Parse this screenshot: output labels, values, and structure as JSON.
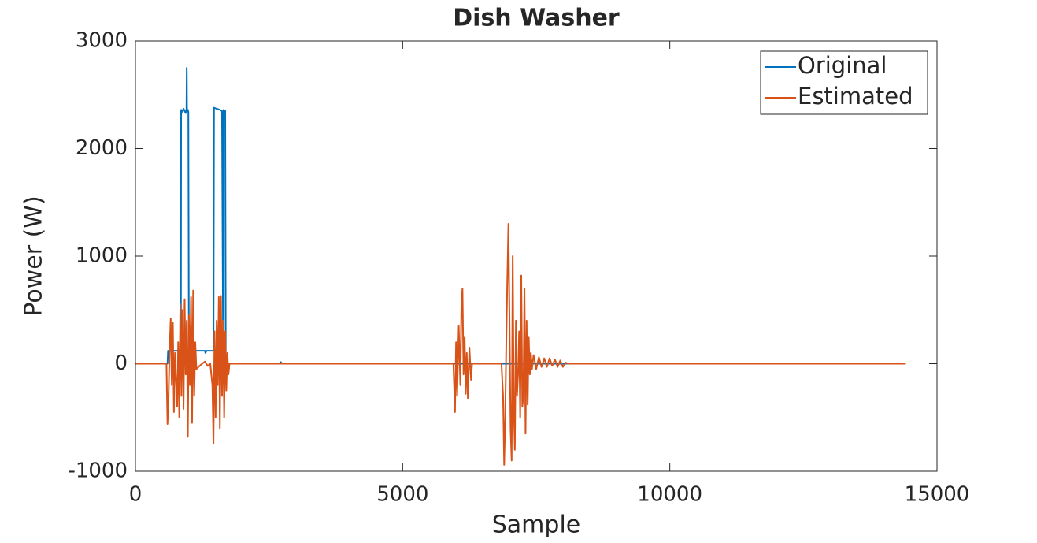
{
  "chart_data": {
    "type": "line",
    "title": "Dish Washer",
    "x_label": "Sample",
    "y_label": "Power (W)",
    "xlim": [
      0,
      15000
    ],
    "xticks": [
      0,
      5000,
      10000,
      15000
    ],
    "ylim": [
      -1000,
      3000
    ],
    "yticks": [
      -1000,
      0,
      1000,
      2000,
      3000
    ],
    "legend": "top-right",
    "series": [
      {
        "name": "Original",
        "color": "#0072BD",
        "x": [
          0,
          600,
          610,
          850,
          855,
          870,
          900,
          940,
          955,
          960,
          965,
          980,
          990,
          1000,
          1300,
          1310,
          1330,
          1340,
          1460,
          1470,
          1520,
          1580,
          1620,
          1640,
          1650,
          1660,
          1680,
          1690,
          1700,
          2700,
          2720,
          2740,
          2760,
          14400
        ],
        "values": [
          0,
          0,
          120,
          120,
          2360,
          2340,
          2370,
          2330,
          2360,
          2750,
          2350,
          2360,
          2340,
          120,
          120,
          100,
          120,
          120,
          120,
          2380,
          2370,
          2360,
          2350,
          130,
          2360,
          2340,
          2350,
          0,
          0,
          0,
          15,
          0,
          0,
          0
        ]
      },
      {
        "name": "Estimated",
        "color": "#D95319",
        "x": [
          0,
          580,
          600,
          620,
          640,
          660,
          680,
          700,
          720,
          740,
          760,
          780,
          800,
          820,
          840,
          860,
          880,
          900,
          920,
          940,
          960,
          980,
          1000,
          1020,
          1040,
          1060,
          1080,
          1100,
          1120,
          1140,
          1200,
          1250,
          1300,
          1350,
          1400,
          1440,
          1460,
          1480,
          1500,
          1520,
          1540,
          1560,
          1580,
          1600,
          1620,
          1640,
          1660,
          1680,
          1700,
          1720,
          1740,
          1760,
          1800,
          5950,
          5980,
          6000,
          6020,
          6050,
          6080,
          6100,
          6120,
          6140,
          6160,
          6180,
          6200,
          6220,
          6250,
          6280,
          6300,
          6350,
          6850,
          6880,
          6900,
          6920,
          6940,
          6960,
          6980,
          7000,
          7020,
          7040,
          7060,
          7080,
          7100,
          7120,
          7140,
          7160,
          7180,
          7200,
          7220,
          7240,
          7260,
          7280,
          7300,
          7320,
          7340,
          7360,
          7380,
          7400,
          7420,
          7450,
          7500,
          7550,
          7600,
          7650,
          7700,
          7750,
          7800,
          7850,
          7900,
          7950,
          8000,
          8050,
          8100,
          14400
        ],
        "values": [
          0,
          0,
          -560,
          -300,
          150,
          420,
          -200,
          380,
          -450,
          100,
          -150,
          -400,
          200,
          -500,
          550,
          -300,
          500,
          -420,
          600,
          -100,
          400,
          -680,
          450,
          -200,
          620,
          -550,
          680,
          -300,
          200,
          -50,
          -20,
          0,
          20,
          -20,
          0,
          -200,
          -740,
          300,
          -500,
          400,
          -200,
          620,
          -600,
          630,
          -300,
          400,
          -500,
          300,
          -250,
          100,
          -100,
          0,
          0,
          0,
          -450,
          200,
          -300,
          350,
          -200,
          550,
          700,
          -100,
          250,
          -280,
          100,
          -320,
          150,
          -150,
          0,
          0,
          0,
          -300,
          -940,
          -500,
          200,
          800,
          1300,
          400,
          -600,
          -900,
          1000,
          -400,
          -800,
          400,
          -300,
          -100,
          300,
          -500,
          820,
          -400,
          -300,
          700,
          -650,
          400,
          -380,
          250,
          -100,
          100,
          -50,
          80,
          -50,
          60,
          -30,
          50,
          -30,
          50,
          -20,
          40,
          -30,
          30,
          -30,
          10,
          0,
          0
        ]
      }
    ]
  }
}
